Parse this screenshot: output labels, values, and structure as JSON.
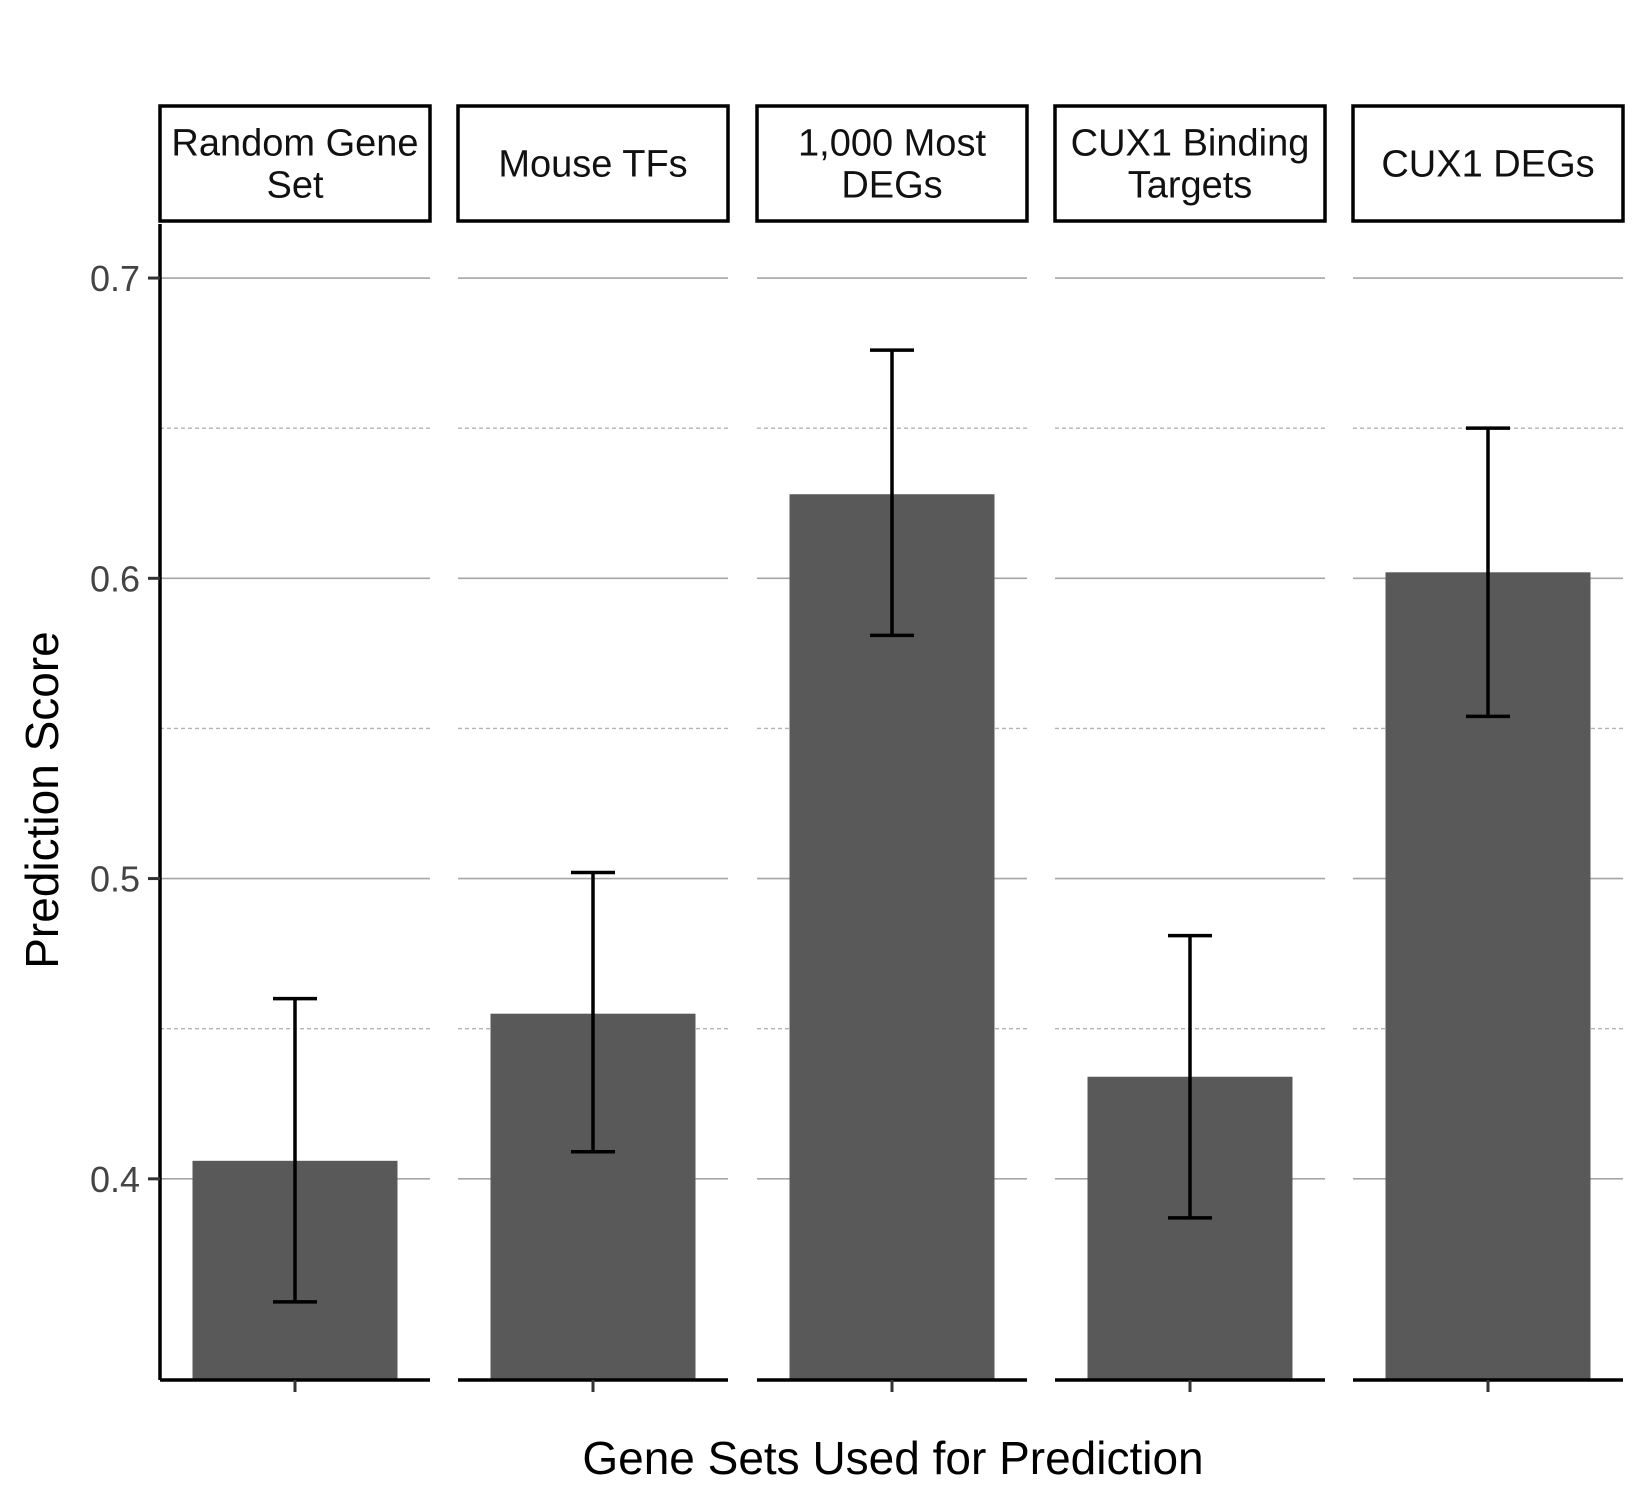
{
  "chart_data": {
    "type": "bar",
    "facets": [
      "Random Gene Set",
      "Mouse TFs",
      "1,000 Most DEGs",
      "CUX1 Binding Targets",
      "CUX1 DEGs"
    ],
    "facet_label_lines": [
      [
        "Random Gene",
        "Set"
      ],
      [
        "Mouse TFs"
      ],
      [
        "1,000 Most",
        "DEGs"
      ],
      [
        "CUX1 Binding",
        "Targets"
      ],
      [
        "CUX1 DEGs"
      ]
    ],
    "values": [
      0.406,
      0.455,
      0.628,
      0.434,
      0.602
    ],
    "error_low": [
      0.359,
      0.409,
      0.581,
      0.387,
      0.554
    ],
    "error_high": [
      0.46,
      0.502,
      0.676,
      0.481,
      0.65
    ],
    "xlabel": "Gene Sets Used for Prediction",
    "ylabel": "Prediction Score",
    "yticks": [
      0.4,
      0.5,
      0.6,
      0.7
    ],
    "ytick_labels": [
      "0.4",
      "0.5",
      "0.6",
      "0.7"
    ],
    "minor_yticks": [
      0.45,
      0.55,
      0.65
    ],
    "ylim": [
      0.333,
      0.718
    ],
    "grid": true,
    "colors": {
      "bar": "#595959",
      "errorbar": "#000000",
      "grid_major": "#a6a6a6",
      "grid_minor": "#b3b3b3"
    }
  }
}
